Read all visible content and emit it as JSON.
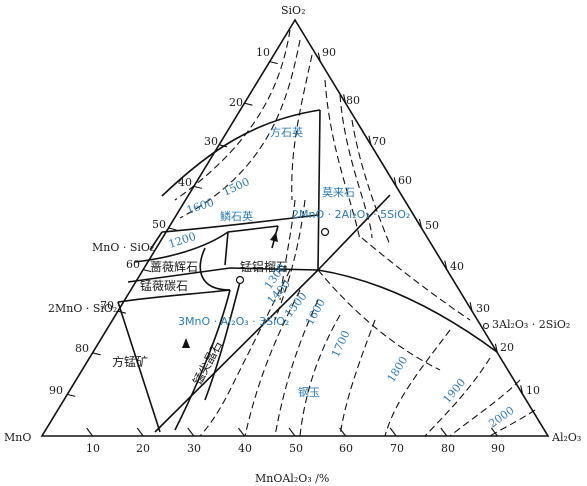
{
  "vertices": {
    "top": "SiO₂",
    "left": "MnO",
    "right": "Al₂O₃"
  },
  "compounds": {
    "mnsio3": "MnO · SiO₂",
    "mn2sio4": "2MnO · SiO₂",
    "mullite": "3Al₂O₃ · 2SiO₂"
  },
  "axis_label": "MnOAl₂O₃ /%",
  "bottom_ticks": [
    "10",
    "20",
    "30",
    "40",
    "50",
    "60",
    "70",
    "80",
    "90"
  ],
  "left_ticks": [
    "10",
    "20",
    "30",
    "40",
    "50",
    "60",
    "70",
    "80",
    "90"
  ],
  "right_ticks": [
    "90",
    "80",
    "70",
    "60",
    "50",
    "40",
    "30",
    "20",
    "10"
  ],
  "phases": {
    "cristobalite": "方石英",
    "tridymite": "鳞石英",
    "mullite": "莫来石",
    "rhodonite": "蔷薇辉石",
    "tephroite": "锰薇碳石",
    "spessartine": "锰铝榴石",
    "galaxite": "锰尖晶石",
    "manganosite": "方锰矿",
    "corundum": "钢玉"
  },
  "blue_compounds": {
    "c2": "2MnO · 2Al₂O₃ · 5SiO₂",
    "c3": "3MnO · Al₂O₃ · 3SiO₂"
  },
  "isotherms": [
    "1600",
    "1500",
    "1200",
    "1300",
    "1400",
    "1500",
    "1600",
    "1700",
    "1800",
    "1900",
    "2000"
  ],
  "colors": {
    "line": "#111111",
    "accent": "#2a7bb8"
  }
}
